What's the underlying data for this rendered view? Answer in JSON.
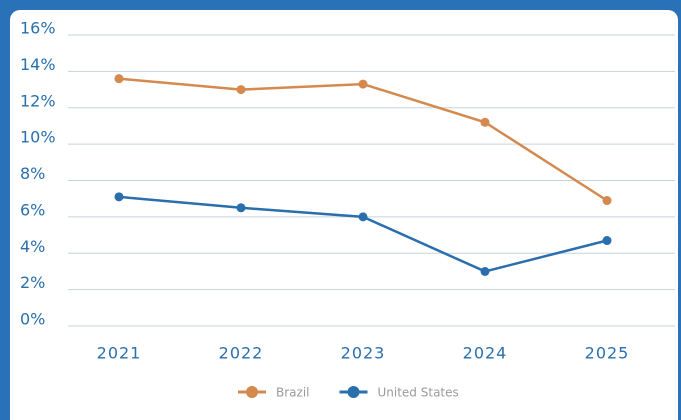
{
  "chart_data": {
    "type": "line",
    "categories": [
      "2021",
      "2022",
      "2023",
      "2024",
      "2025"
    ],
    "series": [
      {
        "name": "Brazil",
        "color": "#d4894f",
        "values": [
          13.6,
          13.0,
          13.3,
          11.2,
          6.9
        ]
      },
      {
        "name": "United States",
        "color": "#2a6fad",
        "values": [
          7.1,
          6.5,
          6.0,
          3.0,
          4.7
        ]
      }
    ],
    "ylim": [
      0,
      16
    ],
    "yticks": [
      {
        "value": 0,
        "label": "0%"
      },
      {
        "value": 2,
        "label": "2%"
      },
      {
        "value": 4,
        "label": "4%"
      },
      {
        "value": 6,
        "label": "6%"
      },
      {
        "value": 8,
        "label": "8%"
      },
      {
        "value": 10,
        "label": "10%"
      },
      {
        "value": 12,
        "label": "12%"
      },
      {
        "value": 14,
        "label": "14%"
      },
      {
        "value": 16,
        "label": "16%"
      }
    ],
    "grid": true,
    "legend": "bottom"
  }
}
